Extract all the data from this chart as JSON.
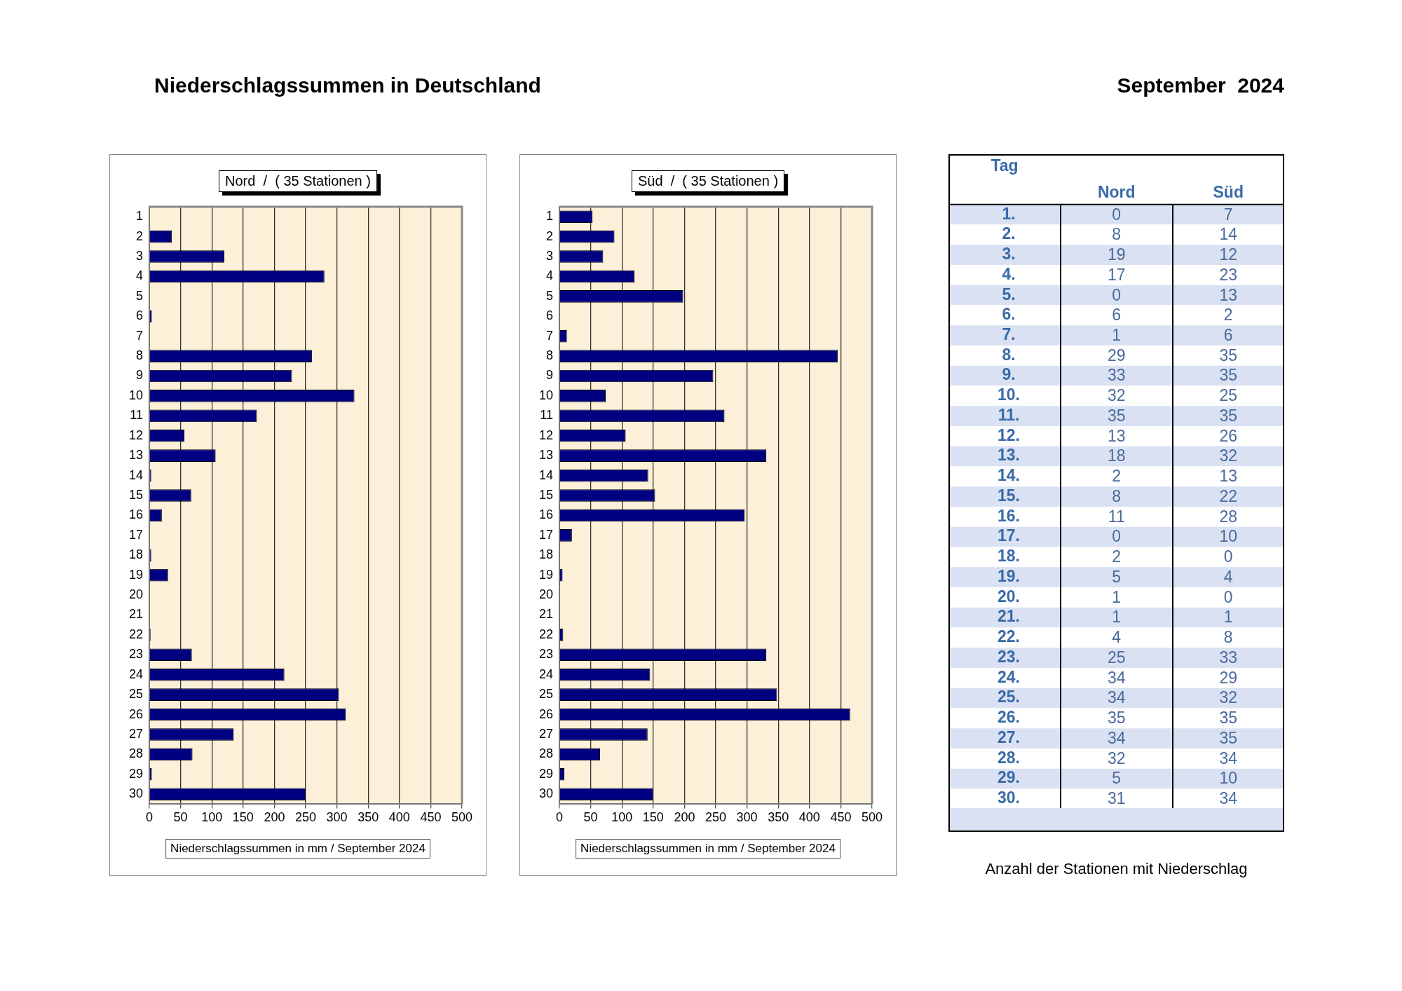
{
  "chart_data": [
    {
      "type": "bar",
      "orientation": "horizontal",
      "title": "Nord  /  ( 35 Stationen )",
      "xlabel": "Niederschlagssummen in mm / September 2024",
      "annotations": [
        "Niederschlagssummen in Deutschland",
        "September  2024"
      ],
      "categories": [
        "1",
        "2",
        "3",
        "4",
        "5",
        "6",
        "7",
        "8",
        "9",
        "10",
        "11",
        "12",
        "13",
        "14",
        "15",
        "16",
        "17",
        "18",
        "19",
        "20",
        "21",
        "22",
        "23",
        "24",
        "25",
        "26",
        "27",
        "28",
        "29",
        "30"
      ],
      "values": [
        0,
        36,
        120,
        280,
        0,
        4,
        0,
        260,
        228,
        328,
        172,
        56,
        106,
        3,
        67,
        20,
        0,
        3,
        30,
        0,
        0,
        2,
        68,
        216,
        303,
        314,
        135,
        69,
        4,
        250
      ],
      "color": "#000080",
      "xlim": [
        0,
        500
      ],
      "xticks": [
        0,
        50,
        100,
        150,
        200,
        250,
        300,
        350,
        400,
        450,
        500
      ],
      "grid": "x"
    },
    {
      "type": "bar",
      "orientation": "horizontal",
      "title": "Süd  /  ( 35 Stationen )",
      "xlabel": "Niederschlagssummen in mm / September 2024",
      "categories": [
        "1",
        "2",
        "3",
        "4",
        "5",
        "6",
        "7",
        "8",
        "9",
        "10",
        "11",
        "12",
        "13",
        "14",
        "15",
        "16",
        "17",
        "18",
        "19",
        "20",
        "21",
        "22",
        "23",
        "24",
        "25",
        "26",
        "27",
        "28",
        "29",
        "30"
      ],
      "values": [
        53,
        88,
        70,
        120,
        198,
        0,
        12,
        445,
        246,
        74,
        264,
        106,
        331,
        142,
        153,
        296,
        20,
        0,
        5,
        0,
        0,
        6,
        331,
        145,
        348,
        465,
        141,
        65,
        8,
        150
      ],
      "color": "#000080",
      "xlim": [
        0,
        500
      ],
      "xticks": [
        0,
        50,
        100,
        150,
        200,
        250,
        300,
        350,
        400,
        450,
        500
      ],
      "grid": "x"
    },
    {
      "type": "heatmap",
      "ylabel": "Tag",
      "categories": [
        "Nord",
        "Süd"
      ],
      "y_categories": [
        "1.",
        "2.",
        "3.",
        "4.",
        "5.",
        "6.",
        "7.",
        "8.",
        "9.",
        "10.",
        "11.",
        "12.",
        "13.",
        "14.",
        "15.",
        "16.",
        "17.",
        "18.",
        "19.",
        "20.",
        "21.",
        "22.",
        "23.",
        "24.",
        "25.",
        "26.",
        "27.",
        "28.",
        "29.",
        "30."
      ],
      "cells": [
        [
          0,
          7
        ],
        [
          8,
          14
        ],
        [
          19,
          12
        ],
        [
          17,
          23
        ],
        [
          0,
          13
        ],
        [
          6,
          2
        ],
        [
          1,
          6
        ],
        [
          29,
          35
        ],
        [
          33,
          35
        ],
        [
          32,
          25
        ],
        [
          35,
          35
        ],
        [
          13,
          26
        ],
        [
          18,
          32
        ],
        [
          2,
          13
        ],
        [
          8,
          22
        ],
        [
          11,
          28
        ],
        [
          0,
          10
        ],
        [
          2,
          0
        ],
        [
          5,
          4
        ],
        [
          1,
          0
        ],
        [
          1,
          1
        ],
        [
          4,
          8
        ],
        [
          25,
          33
        ],
        [
          34,
          29
        ],
        [
          34,
          32
        ],
        [
          35,
          35
        ],
        [
          34,
          35
        ],
        [
          32,
          34
        ],
        [
          5,
          10
        ],
        [
          31,
          34
        ]
      ],
      "data_labels": true,
      "annotations": [
        "Anzahl der Stationen mit Niederschlag"
      ]
    }
  ]
}
